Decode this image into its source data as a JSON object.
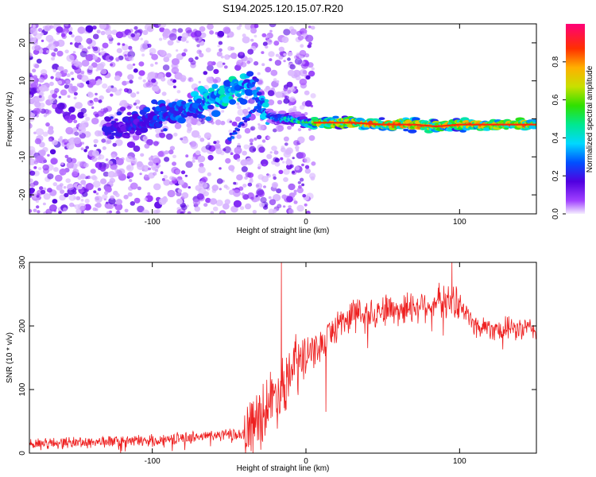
{
  "chart_data": [
    {
      "type": "heatmap",
      "title": "S194.2025.120.15.07.R20",
      "xlabel": "Height of straight line (km)",
      "ylabel": "Frequency (Hz)",
      "xlim": [
        -180,
        150
      ],
      "ylim": [
        -25,
        25
      ],
      "x_ticks": [
        -100,
        0,
        100
      ],
      "y_ticks": [
        20,
        10,
        0,
        -10,
        -20
      ],
      "colorbar": {
        "label": "Normalized spectral amplitude",
        "range": [
          0.0,
          1.0
        ],
        "ticks": [
          0.0,
          0.2,
          0.4,
          0.6,
          0.8
        ],
        "tick_labels": [
          "0.0",
          "0.2",
          "0.4",
          "0.6",
          "0.8"
        ]
      },
      "signal_ridge": {
        "x": [
          -120,
          -100,
          -80,
          -60,
          -45,
          -35,
          -28,
          -20,
          -10,
          0,
          10,
          30,
          50,
          70,
          85,
          100,
          120,
          150
        ],
        "y": [
          -2,
          0,
          2,
          5,
          8,
          9,
          2,
          0,
          0,
          -1,
          -1,
          -1,
          -1.5,
          -1.5,
          -2,
          -1.5,
          -1.5,
          -1.5
        ],
        "amplitude": [
          0.2,
          0.25,
          0.3,
          0.4,
          0.45,
          0.3,
          0.35,
          0.4,
          0.5,
          0.55,
          0.85,
          0.85,
          0.9,
          0.9,
          0.85,
          0.85,
          0.85,
          0.85
        ]
      }
    },
    {
      "type": "line",
      "title": "",
      "xlabel": "Height of straight line (km)",
      "ylabel": "SNR (10 * v/v)",
      "xlim": [
        -180,
        150
      ],
      "ylim": [
        0,
        300
      ],
      "x_ticks": [
        -100,
        0,
        100
      ],
      "y_ticks": [
        0,
        100,
        200,
        300
      ],
      "line_color": "#ee2020",
      "envelope": {
        "x": [
          -180,
          -100,
          -60,
          -40,
          -30,
          -20,
          -10,
          0,
          10,
          20,
          30,
          50,
          70,
          90,
          100,
          110,
          130,
          150
        ],
        "y": [
          15,
          20,
          28,
          30,
          60,
          90,
          130,
          150,
          170,
          200,
          220,
          225,
          230,
          240,
          235,
          200,
          195,
          195
        ]
      },
      "spikes": [
        {
          "x": -16,
          "y": 300
        },
        {
          "x": 95,
          "y": 300
        },
        {
          "x": 13,
          "y": 65
        }
      ]
    }
  ]
}
